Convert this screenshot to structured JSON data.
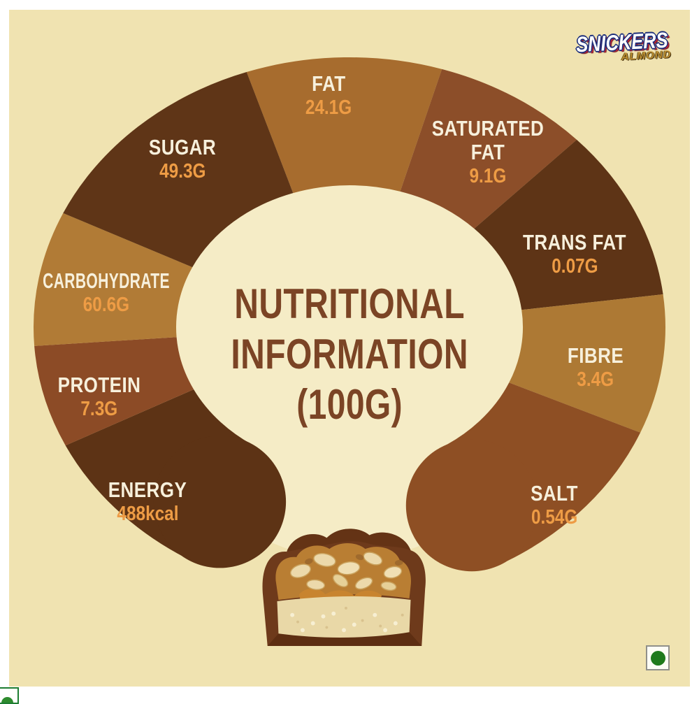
{
  "page": {
    "background": "#ffffff",
    "card_background": "#f0e3b1",
    "inner_highlight_color": "#f5ecc6"
  },
  "brand": {
    "name": "SNICKERS",
    "variant": "ALMOND"
  },
  "title": {
    "text": "NUTRITIONAL\nINFORMATION\n(100G)",
    "color": "#7b4425"
  },
  "images": {
    "product": "snickers-bar-cross-section"
  },
  "veg_mark": {
    "meaning": "vegetarian-dot",
    "dot_color": "#1f7a1c"
  },
  "chart_data": {
    "type": "pie",
    "variant": "horseshoe-donut",
    "title": "NUTRITIONAL INFORMATION (100G)",
    "center_title": "NUTRITIONAL INFORMATION (100G)",
    "basis": "100G",
    "legend": "none",
    "label_color": "#f7f0dc",
    "value_color": "#ee9c45",
    "segments": [
      {
        "label": "FAT",
        "text": "FAT",
        "value": 24.1,
        "unit": "G",
        "display": "24.1G",
        "color": "#a76c2e"
      },
      {
        "label": "SATURATED FAT",
        "text": "SATURATED\nFAT",
        "value": 9.1,
        "unit": "G",
        "display": "9.1G",
        "color": "#8c4e29"
      },
      {
        "label": "TRANS FAT",
        "text": "TRANS FAT",
        "value": 0.07,
        "unit": "G",
        "display": "0.07G",
        "color": "#5e3416"
      },
      {
        "label": "FIBRE",
        "text": "FIBRE",
        "value": 3.4,
        "unit": "G",
        "display": "3.4G",
        "color": "#ad7934"
      },
      {
        "label": "SALT",
        "text": "SALT",
        "value": 0.54,
        "unit": "G",
        "display": "0.54G",
        "color": "#8e4f24"
      },
      {
        "label": "ENERGY",
        "text": "ENERGY",
        "value": 488,
        "unit": "kcal",
        "display": "488kcal",
        "color": "#5d3315"
      },
      {
        "label": "PROTEIN",
        "text": "PROTEIN",
        "value": 7.3,
        "unit": "G",
        "display": "7.3G",
        "color": "#8c4b26"
      },
      {
        "label": "CARBOHYDRATE",
        "text": "CARBOHYDRATE",
        "value": 60.6,
        "unit": "G",
        "display": "60.6G",
        "color": "#b17b36"
      },
      {
        "label": "SUGAR",
        "text": "SUGAR",
        "value": 49.3,
        "unit": "G",
        "display": "49.3G",
        "color": "#5f3517"
      }
    ]
  }
}
